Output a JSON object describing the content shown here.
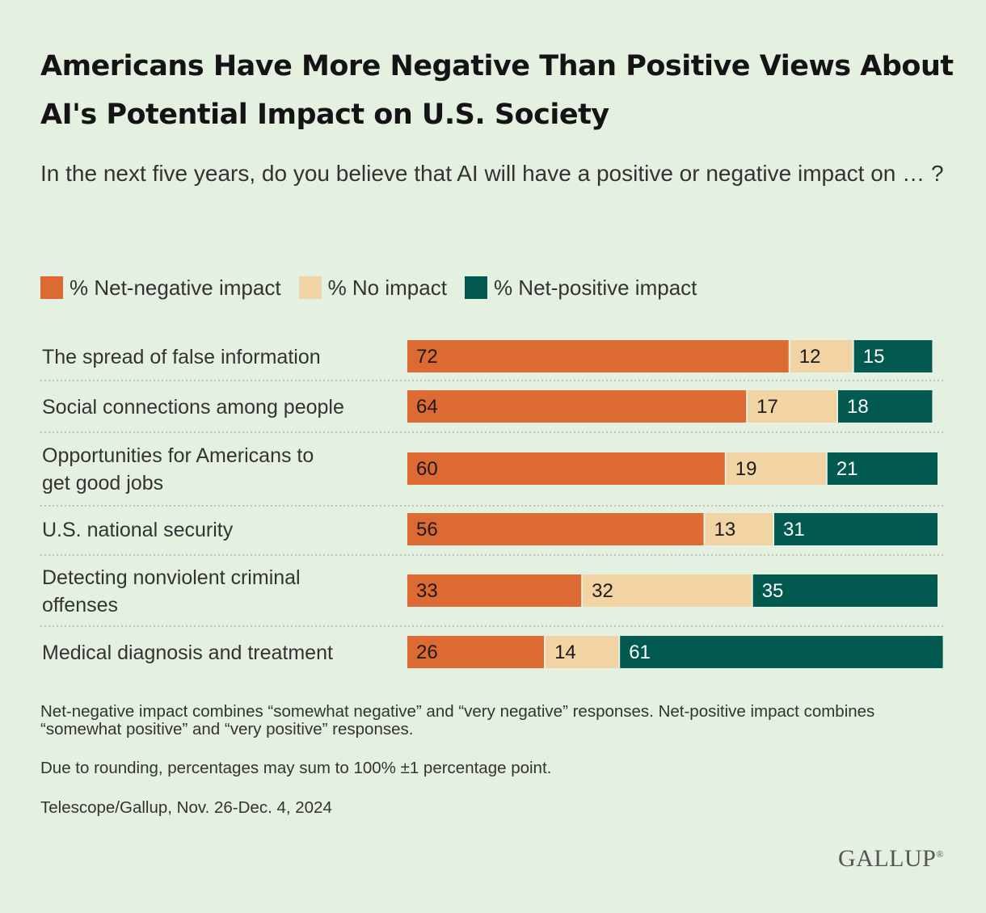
{
  "chart_data": {
    "type": "bar",
    "orientation": "horizontal",
    "stacked": true,
    "title": "Americans Have More Negative Than Positive Views About AI's Potential Impact on U.S. Society",
    "subtitle": "In the next five years, do you believe that AI will have a positive or negative impact on … ?",
    "categories": [
      "The spread of false information",
      "Social connections among people",
      "Opportunities for Americans to get good jobs",
      "U.S. national security",
      "Detecting nonviolent criminal offenses",
      "Medical diagnosis and treatment"
    ],
    "category_lines": [
      [
        "The spread of false information"
      ],
      [
        "Social connections among people"
      ],
      [
        "Opportunities for Americans to",
        "get good jobs"
      ],
      [
        "U.S. national security"
      ],
      [
        "Detecting nonviolent criminal",
        "offenses"
      ],
      [
        "Medical diagnosis and treatment"
      ]
    ],
    "series": [
      {
        "name": "% Net-negative impact",
        "color": "#dc6a32",
        "label_color": "#1a1a1a",
        "values": [
          72,
          64,
          60,
          56,
          33,
          26
        ]
      },
      {
        "name": "% No impact",
        "color": "#f2d3a3",
        "label_color": "#1a1a1a",
        "values": [
          12,
          17,
          19,
          13,
          32,
          14
        ]
      },
      {
        "name": "% Net-positive impact",
        "color": "#02594f",
        "label_color": "#ffffff",
        "values": [
          15,
          18,
          21,
          31,
          35,
          61
        ]
      }
    ],
    "xlim": [
      0,
      100
    ],
    "legend_position": "top",
    "grid": false
  },
  "footnotes": [
    "Net-negative impact combines “somewhat negative” and “very negative” responses. Net-positive impact combines “somewhat positive” and “very positive” responses.",
    "Due to rounding, percentages may sum to 100% ±1 percentage point.",
    "Telescope/Gallup, Nov. 26-Dec. 4, 2024"
  ],
  "brand": "GALLUP",
  "brand_mark": "®"
}
